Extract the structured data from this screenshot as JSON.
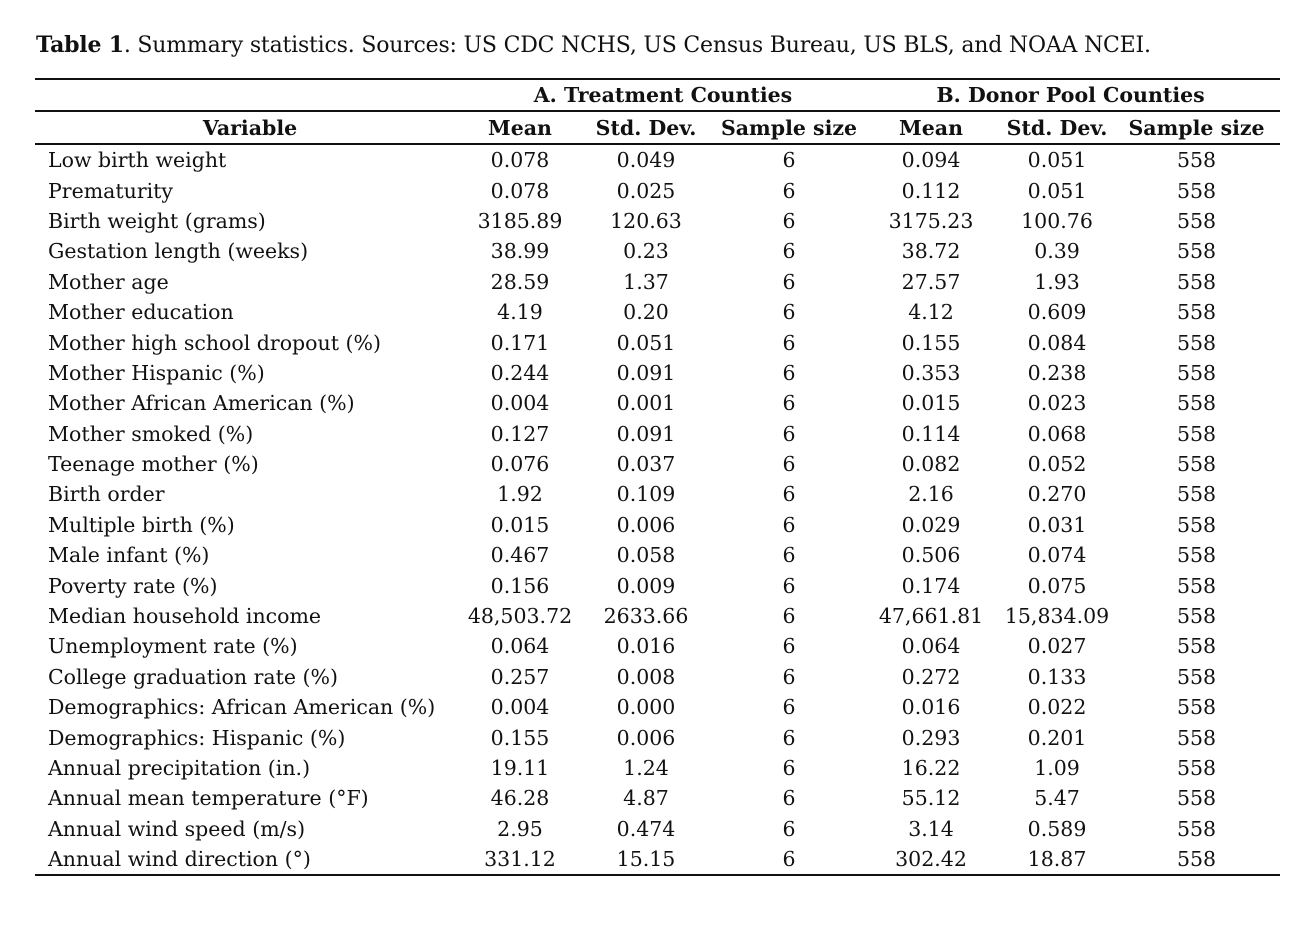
{
  "caption": {
    "label": "Table 1",
    "text": ". Summary statistics. Sources: US CDC NCHS, US Census Bureau, US BLS, and NOAA NCEI."
  },
  "table": {
    "groups": [
      "A. Treatment Counties",
      "B. Donor Pool Counties"
    ],
    "columns": [
      "Variable",
      "Mean",
      "Std. Dev.",
      "Sample size",
      "Mean",
      "Std. Dev.",
      "Sample size"
    ],
    "rows": [
      [
        "Low birth weight",
        "0.078",
        "0.049",
        "6",
        "0.094",
        "0.051",
        "558"
      ],
      [
        "Prematurity",
        "0.078",
        "0.025",
        "6",
        "0.112",
        "0.051",
        "558"
      ],
      [
        "Birth weight (grams)",
        "3185.89",
        "120.63",
        "6",
        "3175.23",
        "100.76",
        "558"
      ],
      [
        "Gestation length (weeks)",
        "38.99",
        "0.23",
        "6",
        "38.72",
        "0.39",
        "558"
      ],
      [
        "Mother age",
        "28.59",
        "1.37",
        "6",
        "27.57",
        "1.93",
        "558"
      ],
      [
        "Mother education",
        "4.19",
        "0.20",
        "6",
        "4.12",
        "0.609",
        "558"
      ],
      [
        "Mother high school dropout (%)",
        "0.171",
        "0.051",
        "6",
        "0.155",
        "0.084",
        "558"
      ],
      [
        "Mother Hispanic (%)",
        "0.244",
        "0.091",
        "6",
        "0.353",
        "0.238",
        "558"
      ],
      [
        "Mother African American (%)",
        "0.004",
        "0.001",
        "6",
        "0.015",
        "0.023",
        "558"
      ],
      [
        "Mother smoked (%)",
        "0.127",
        "0.091",
        "6",
        "0.114",
        "0.068",
        "558"
      ],
      [
        "Teenage mother (%)",
        "0.076",
        "0.037",
        "6",
        "0.082",
        "0.052",
        "558"
      ],
      [
        "Birth order",
        "1.92",
        "0.109",
        "6",
        "2.16",
        "0.270",
        "558"
      ],
      [
        "Multiple birth (%)",
        "0.015",
        "0.006",
        "6",
        "0.029",
        "0.031",
        "558"
      ],
      [
        "Male infant (%)",
        "0.467",
        "0.058",
        "6",
        "0.506",
        "0.074",
        "558"
      ],
      [
        "Poverty rate (%)",
        "0.156",
        "0.009",
        "6",
        "0.174",
        "0.075",
        "558"
      ],
      [
        "Median household income",
        "48,503.72",
        "2633.66",
        "6",
        "47,661.81",
        "15,834.09",
        "558"
      ],
      [
        "Unemployment rate (%)",
        "0.064",
        "0.016",
        "6",
        "0.064",
        "0.027",
        "558"
      ],
      [
        "College graduation rate (%)",
        "0.257",
        "0.008",
        "6",
        "0.272",
        "0.133",
        "558"
      ],
      [
        "Demographics: African American (%)",
        "0.004",
        "0.000",
        "6",
        "0.016",
        "0.022",
        "558"
      ],
      [
        "Demographics: Hispanic (%)",
        "0.155",
        "0.006",
        "6",
        "0.293",
        "0.201",
        "558"
      ],
      [
        "Annual precipitation (in.)",
        "19.11",
        "1.24",
        "6",
        "16.22",
        "1.09",
        "558"
      ],
      [
        "Annual mean temperature (°F)",
        "46.28",
        "4.87",
        "6",
        "55.12",
        "5.47",
        "558"
      ],
      [
        "Annual wind speed (m/s)",
        "2.95",
        "0.474",
        "6",
        "3.14",
        "0.589",
        "558"
      ],
      [
        "Annual wind direction (°)",
        "331.12",
        "15.15",
        "6",
        "302.42",
        "18.87",
        "558"
      ]
    ]
  }
}
